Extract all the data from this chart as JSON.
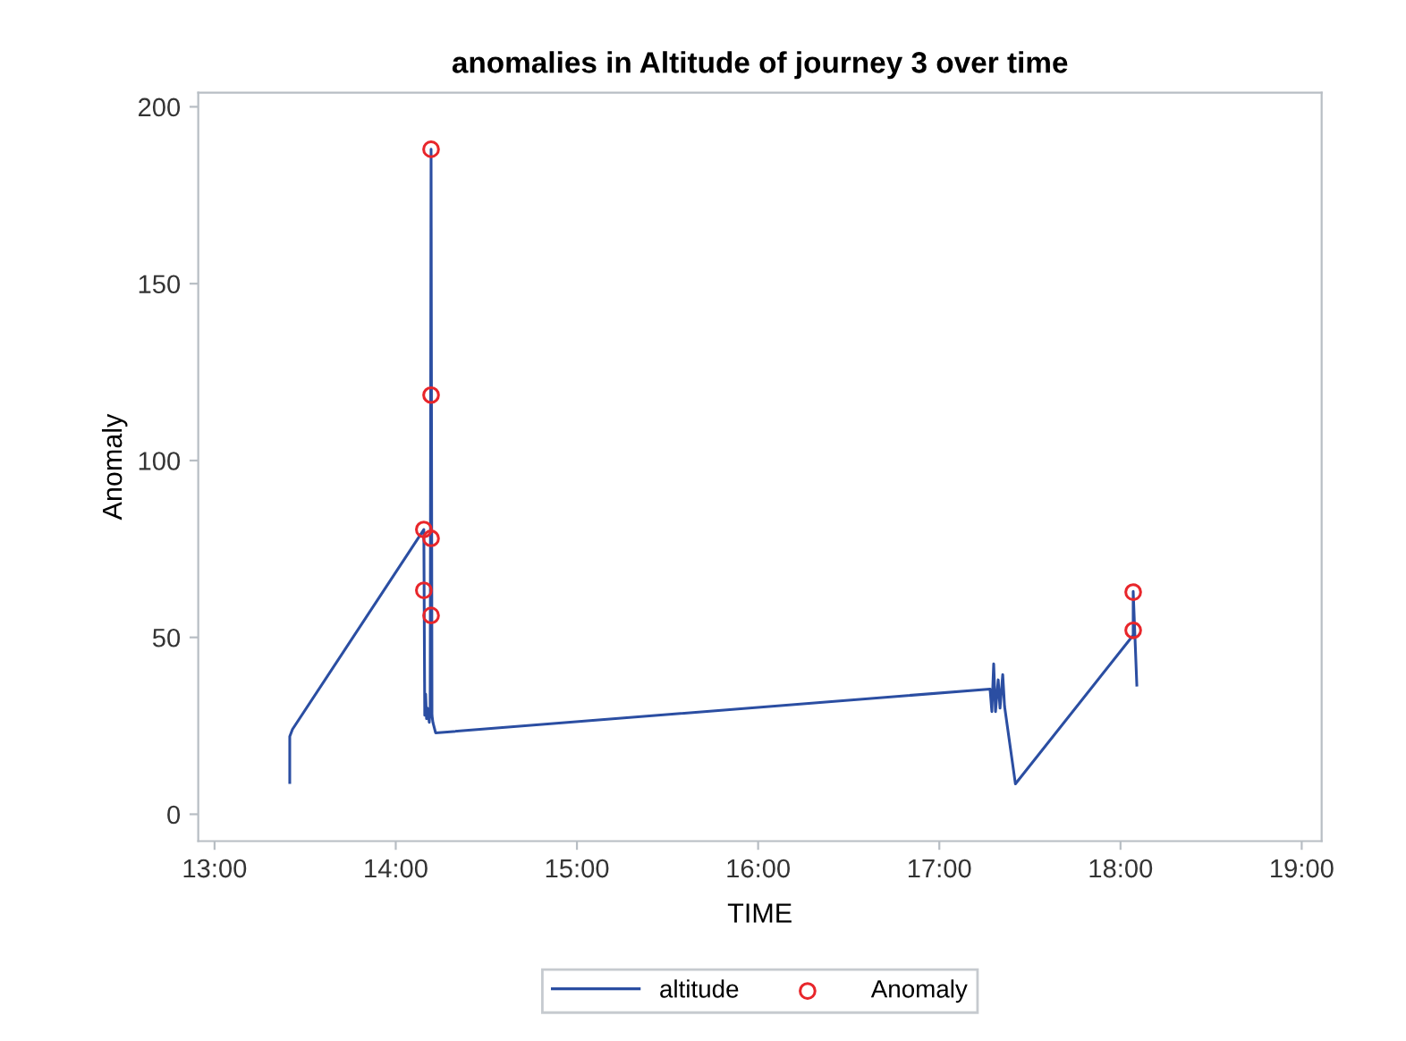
{
  "chart_data": {
    "type": "line",
    "title": "anomalies in Altitude of journey 3 over time",
    "xlabel": "TIME",
    "ylabel": "Anomaly",
    "series": [
      {
        "name": "altitude",
        "color": "#2b4ea2",
        "marker": "none",
        "x": [
          13.415,
          13.415,
          13.43,
          14.155,
          14.16,
          14.165,
          14.17,
          14.175,
          14.185,
          14.19,
          14.195,
          14.2,
          14.205,
          14.22,
          17.28,
          17.29,
          17.3,
          17.31,
          17.325,
          17.335,
          17.35,
          17.36,
          17.42,
          18.07,
          18.07,
          18.09
        ],
        "values": [
          9,
          22,
          24,
          80.5,
          28,
          34,
          27,
          30,
          26,
          30,
          188,
          28,
          26,
          23,
          35.4,
          29,
          42.5,
          29,
          38,
          30,
          39.5,
          30.5,
          8.6,
          50.6,
          63,
          36.5
        ]
      },
      {
        "name": "Anomaly",
        "type": "scatter",
        "color": "#e8262b",
        "marker": "circle",
        "x": [
          14.195,
          14.195,
          14.155,
          14.195,
          14.155,
          14.195,
          18.07,
          18.07
        ],
        "values": [
          188,
          118.5,
          80.5,
          78,
          63.3,
          56.2,
          62.8,
          52
        ]
      }
    ],
    "xlim": [
      12.91,
      19.11
    ],
    "xticks": [
      {
        "value": 13,
        "label": "13:00"
      },
      {
        "value": 14,
        "label": "14:00"
      },
      {
        "value": 15,
        "label": "15:00"
      },
      {
        "value": 16,
        "label": "16:00"
      },
      {
        "value": 17,
        "label": "17:00"
      },
      {
        "value": 18,
        "label": "18:00"
      },
      {
        "value": 19,
        "label": "19:00"
      }
    ],
    "ylim": [
      -7.6,
      204
    ],
    "yticks": [
      0,
      50,
      100,
      150,
      200
    ],
    "grid": false,
    "legend": "bottom"
  }
}
